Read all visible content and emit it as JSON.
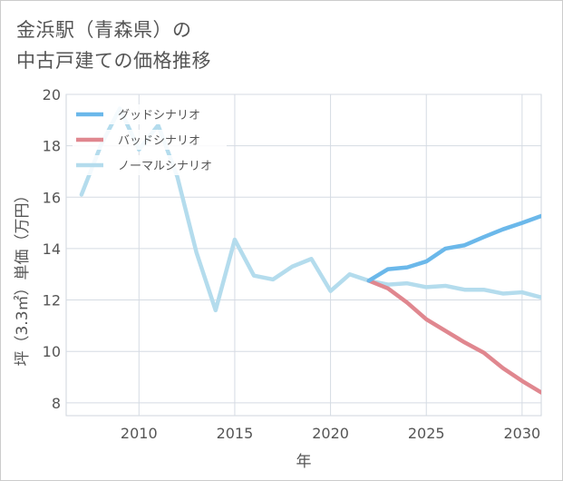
{
  "chart_data": {
    "type": "line",
    "title_line1": "金浜駅（青森県）の",
    "title_line2": "中古戸建ての価格推移",
    "xlabel": "年",
    "ylabel": "坪（3.3㎡）単価（万円）",
    "xlim": [
      2006.2,
      2031
    ],
    "ylim": [
      7.5,
      20
    ],
    "x_ticks": [
      2010,
      2015,
      2020,
      2025,
      2030
    ],
    "y_ticks": [
      8,
      10,
      12,
      14,
      16,
      18,
      20
    ],
    "grid": true,
    "legend_position": "top-left",
    "series": [
      {
        "name": "グッドシナリオ",
        "color": "#6bb8ea",
        "x": [
          2022,
          2023,
          2024,
          2025,
          2026,
          2027,
          2028,
          2029,
          2030,
          2031
        ],
        "values": [
          12.75,
          13.2,
          13.27,
          13.5,
          14.0,
          14.13,
          14.45,
          14.75,
          15.0,
          15.27
        ]
      },
      {
        "name": "バッドシナリオ",
        "color": "#e0878f",
        "x": [
          2022,
          2023,
          2024,
          2025,
          2026,
          2027,
          2028,
          2029,
          2030,
          2031
        ],
        "values": [
          12.75,
          12.45,
          11.9,
          11.25,
          10.8,
          10.35,
          9.95,
          9.35,
          8.85,
          8.4
        ]
      },
      {
        "name": "ノーマルシナリオ",
        "color": "#b4dced",
        "x": [
          2007,
          2008,
          2009,
          2010,
          2011,
          2012,
          2013,
          2014,
          2015,
          2016,
          2017,
          2018,
          2019,
          2020,
          2021,
          2022,
          2023,
          2024,
          2025,
          2026,
          2027,
          2028,
          2029,
          2030,
          2031
        ],
        "values": [
          16.1,
          18.0,
          19.45,
          17.85,
          18.8,
          16.8,
          13.85,
          11.6,
          14.35,
          12.95,
          12.8,
          13.3,
          13.6,
          12.35,
          13.0,
          12.75,
          12.6,
          12.65,
          12.5,
          12.55,
          12.4,
          12.4,
          12.25,
          12.3,
          12.1
        ]
      }
    ]
  }
}
